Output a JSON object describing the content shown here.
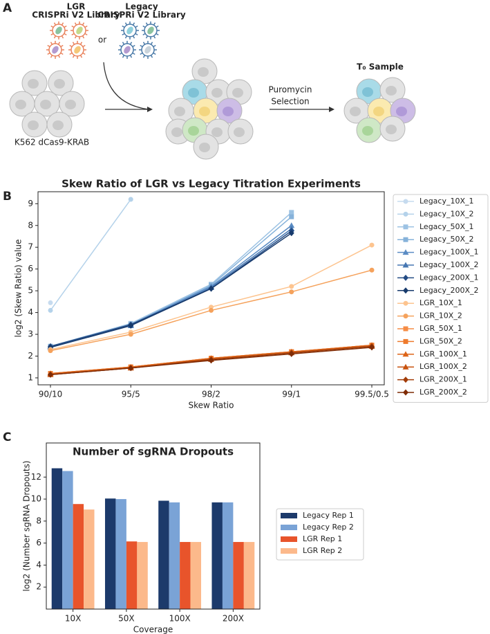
{
  "panel_labels": [
    "A",
    "B",
    "C"
  ],
  "diagram": {
    "lgr_title": "LGR",
    "lgr_subtitle": "CRISPRi V2 Library",
    "legacy_title": "Legacy",
    "legacy_subtitle": "CRISPRi V2 Library",
    "or": "or",
    "cell_line": "K562 dCas9-KRAB",
    "selection_line1": "Puromycin",
    "selection_line2": "Selection",
    "sample": "T₀ Sample"
  },
  "chart_data": [
    {
      "type": "line",
      "title": "Skew Ratio of LGR vs Legacy Titration Experiments",
      "x_label": "Skew Ratio",
      "y_label": "log2 (Skew Ratio) value",
      "categories": [
        "90/10",
        "95/5",
        "98/2",
        "99/1",
        "99.5/0.5"
      ],
      "ylim": [
        0.68,
        9.55
      ],
      "yticks": [
        1,
        2,
        3,
        4,
        5,
        6,
        7,
        8,
        9
      ],
      "grid": false,
      "legend": "outside right",
      "series": [
        {
          "name": "Legacy_10X_1",
          "color": "#c6dbef",
          "marker": "circle",
          "values": [
            4.45,
            null,
            null,
            null,
            null
          ]
        },
        {
          "name": "Legacy_10X_2",
          "color": "#b4d2ea",
          "marker": "circle",
          "values": [
            4.1,
            9.2,
            null,
            null,
            null
          ]
        },
        {
          "name": "Legacy_50X_1",
          "color": "#9cc2e3",
          "marker": "square",
          "values": [
            2.45,
            3.5,
            5.3,
            8.6,
            null
          ]
        },
        {
          "name": "Legacy_50X_2",
          "color": "#86b2da",
          "marker": "square",
          "values": [
            2.45,
            3.45,
            5.25,
            8.4,
            null
          ]
        },
        {
          "name": "Legacy_100X_1",
          "color": "#5b8cc4",
          "marker": "triangle",
          "values": [
            2.45,
            3.45,
            5.2,
            8.0,
            null
          ]
        },
        {
          "name": "Legacy_100X_2",
          "color": "#4677b2",
          "marker": "triangle",
          "values": [
            2.4,
            3.4,
            5.15,
            7.85,
            null
          ]
        },
        {
          "name": "Legacy_200X_1",
          "color": "#244c85",
          "marker": "diamond",
          "values": [
            2.45,
            3.45,
            5.1,
            7.75,
            null
          ]
        },
        {
          "name": "Legacy_200X_2",
          "color": "#173a6c",
          "marker": "diamond",
          "values": [
            2.4,
            3.4,
            5.1,
            7.65,
            null
          ]
        },
        {
          "name": "LGR_10X_1",
          "color": "#fdc48f",
          "marker": "circle",
          "values": [
            2.3,
            3.1,
            4.25,
            5.2,
            7.1
          ]
        },
        {
          "name": "LGR_10X_2",
          "color": "#f5a25c",
          "marker": "circle",
          "values": [
            2.25,
            3.0,
            4.1,
            4.95,
            5.95
          ]
        },
        {
          "name": "LGR_50X_1",
          "color": "#f68c45",
          "marker": "square",
          "values": [
            1.2,
            1.5,
            1.9,
            2.2,
            2.5
          ]
        },
        {
          "name": "LGR_50X_2",
          "color": "#ee7a2c",
          "marker": "square",
          "values": [
            1.2,
            1.5,
            1.9,
            2.2,
            2.5
          ]
        },
        {
          "name": "LGR_100X_1",
          "color": "#dd6418",
          "marker": "triangle",
          "values": [
            1.2,
            1.5,
            1.9,
            2.2,
            2.5
          ]
        },
        {
          "name": "LGR_100X_2",
          "color": "#c8530f",
          "marker": "triangle",
          "values": [
            1.15,
            1.45,
            1.85,
            2.15,
            2.45
          ]
        },
        {
          "name": "LGR_200X_1",
          "color": "#a23c08",
          "marker": "diamond",
          "values": [
            1.15,
            1.45,
            1.85,
            2.15,
            2.45
          ]
        },
        {
          "name": "LGR_200X_2",
          "color": "#7f2c06",
          "marker": "diamond",
          "values": [
            1.15,
            1.45,
            1.8,
            2.1,
            2.4
          ]
        }
      ]
    },
    {
      "type": "bar",
      "title": "Number of sgRNA Dropouts",
      "x_label": "Coverage",
      "y_label": "log2 (Number sgRNA Dropouts)",
      "categories": [
        "10X",
        "50X",
        "100X",
        "200X"
      ],
      "ylim": [
        0,
        15.1
      ],
      "yticks": [
        2,
        4,
        6,
        8,
        10,
        12
      ],
      "grid": false,
      "legend": "outside right",
      "series": [
        {
          "name": "Legacy Rep 1",
          "color": "#1c3a6b",
          "values": [
            12.8,
            10.05,
            9.85,
            9.7
          ]
        },
        {
          "name": "Legacy Rep 2",
          "color": "#7aa3d6",
          "values": [
            12.55,
            10.0,
            9.7,
            9.7
          ]
        },
        {
          "name": "LGR Rep 1",
          "color": "#e8542b",
          "values": [
            9.55,
            6.15,
            6.1,
            6.1
          ]
        },
        {
          "name": "LGR Rep 2",
          "color": "#fcb98b",
          "values": [
            9.05,
            6.1,
            6.1,
            6.1
          ]
        }
      ]
    }
  ]
}
